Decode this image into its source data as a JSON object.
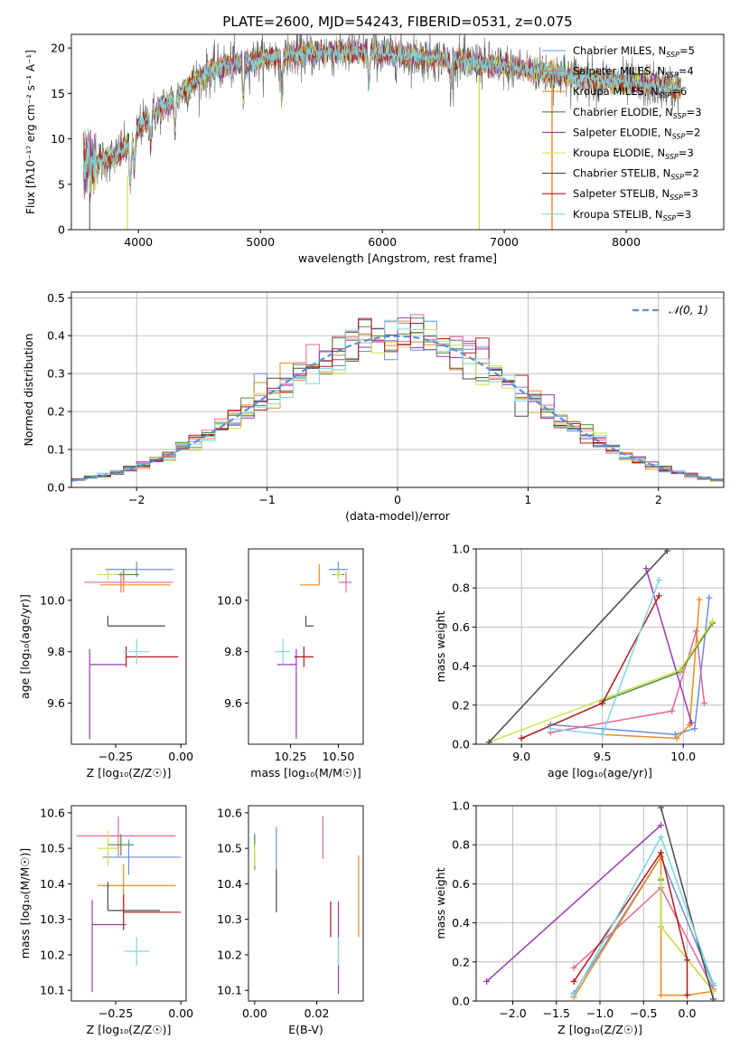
{
  "title": "PLATE=2600, MJD=54243, FIBERID=0531, z=0.075",
  "colors": {
    "Chabrier MILES": "#6b8fd9",
    "Salpeter MILES": "#e8669a",
    "Kroupa MILES": "#f08a1e",
    "Chabrier ELODIE": "#4f8a3a",
    "Salpeter ELODIE": "#9a3ab5",
    "Kroupa ELODIE": "#cfe24a",
    "Chabrier STELIB": "#4a4a4a",
    "Salpeter STELIB": "#b01a1a",
    "Kroupa STELIB": "#7ed7e0",
    "normal": "#5b8ed6"
  },
  "chart_data": [
    {
      "type": "line",
      "xlabel": "wavelength [Angstrom, rest frame]",
      "ylabel": "Flux [fλ10⁻¹⁷ erg cm⁻² s⁻¹ A⁻¹]",
      "xlim": [
        3450,
        8800
      ],
      "ylim": [
        0,
        21.5
      ],
      "xticks": [
        4000,
        5000,
        6000,
        7000,
        8000
      ],
      "yticks": [
        0,
        5,
        10,
        15,
        20
      ],
      "legend_position": "top-right",
      "series": [
        {
          "name": "Chabrier MILES",
          "nssp": 5
        },
        {
          "name": "Salpeter MILES",
          "nssp": 4
        },
        {
          "name": "Kroupa MILES",
          "nssp": 6
        },
        {
          "name": "Chabrier ELODIE",
          "nssp": 3
        },
        {
          "name": "Salpeter ELODIE",
          "nssp": 2
        },
        {
          "name": "Kroupa ELODIE",
          "nssp": 3
        },
        {
          "name": "Chabrier STELIB",
          "nssp": 2
        },
        {
          "name": "Salpeter STELIB",
          "nssp": 3
        },
        {
          "name": "Kroupa STELIB",
          "nssp": 3
        }
      ],
      "continuum_anchors": [
        [
          3550,
          7.2
        ],
        [
          3700,
          7.6
        ],
        [
          3800,
          8.0
        ],
        [
          3950,
          9.6
        ],
        [
          4000,
          11.2
        ],
        [
          4100,
          12.5
        ],
        [
          4200,
          13.5
        ],
        [
          4300,
          14.5
        ],
        [
          4500,
          16.8
        ],
        [
          4700,
          18.0
        ],
        [
          4900,
          18.5
        ],
        [
          5100,
          19.0
        ],
        [
          5300,
          19.3
        ],
        [
          5500,
          19.5
        ],
        [
          5700,
          19.5
        ],
        [
          5900,
          19.6
        ],
        [
          6100,
          19.3
        ],
        [
          6300,
          19.0
        ],
        [
          6500,
          18.8
        ],
        [
          6700,
          18.4
        ],
        [
          6900,
          18.1
        ],
        [
          7100,
          17.8
        ],
        [
          7300,
          17.4
        ],
        [
          7500,
          17.0
        ],
        [
          7700,
          16.6
        ],
        [
          7900,
          16.3
        ],
        [
          8100,
          16.0
        ],
        [
          8300,
          15.7
        ],
        [
          8450,
          15.5
        ]
      ],
      "dips": [
        [
          3933,
          4.5
        ],
        [
          3968,
          3.5
        ],
        [
          4101,
          3.0
        ],
        [
          4300,
          3.5
        ],
        [
          4861,
          4.0
        ],
        [
          5175,
          4.5
        ],
        [
          5890,
          3.5
        ],
        [
          6563,
          2.5
        ]
      ]
    },
    {
      "type": "histogram",
      "xlabel": "(data-model)/error",
      "ylabel": "Normed distribution",
      "xlim": [
        -2.5,
        2.5
      ],
      "ylim": [
        0,
        0.515
      ],
      "xticks": [
        -2,
        -1,
        0,
        1,
        2
      ],
      "yticks": [
        0.0,
        0.1,
        0.2,
        0.3,
        0.4,
        0.5
      ],
      "grid": true,
      "legend_position": "top-right",
      "reference_curve": "𝒩(0, 1)",
      "bin_width": 0.1
    },
    {
      "type": "errorbar",
      "xlabel": "Z [log₁₀(Z/Z☉)]",
      "ylabel": "age  [log₁₀(age/yr)]",
      "xlim": [
        -0.42,
        0.02
      ],
      "ylim": [
        9.44,
        10.2
      ],
      "xticks": [
        -0.25,
        0.0
      ],
      "yticks": [
        9.6,
        9.8,
        10.0
      ],
      "points": [
        {
          "model": "Chabrier MILES",
          "x": -0.17,
          "y": 10.12,
          "xerr": [
            0.12,
            0.14
          ],
          "yerr": [
            0.03,
            0.03
          ]
        },
        {
          "model": "Salpeter MILES",
          "x": -0.23,
          "y": 10.07,
          "xerr": [
            0.14,
            0.2
          ],
          "yerr": [
            0.04,
            0.04
          ]
        },
        {
          "model": "Kroupa MILES",
          "x": -0.22,
          "y": 10.06,
          "xerr": [
            0.09,
            0.18
          ],
          "yerr": [
            0.03,
            0.03
          ]
        },
        {
          "model": "Chabrier ELODIE",
          "x": -0.22,
          "y": 10.1,
          "xerr": [
            0.06,
            0.06
          ],
          "yerr": [
            0.02,
            0.02
          ]
        },
        {
          "model": "Salpeter ELODIE",
          "x": -0.35,
          "y": 9.75,
          "xerr": [
            0.0,
            0.14
          ],
          "yerr": [
            0.29,
            0.06
          ]
        },
        {
          "model": "Kroupa ELODIE",
          "x": -0.28,
          "y": 10.1,
          "xerr": [
            0.04,
            0.04
          ],
          "yerr": [
            0.02,
            0.02
          ]
        },
        {
          "model": "Chabrier STELIB",
          "x": -0.28,
          "y": 9.9,
          "xerr": [
            0.0,
            0.22
          ],
          "yerr": [
            0.0,
            0.04
          ]
        },
        {
          "model": "Salpeter STELIB",
          "x": -0.21,
          "y": 9.78,
          "xerr": [
            0.0,
            0.2
          ],
          "yerr": [
            0.04,
            0.04
          ]
        },
        {
          "model": "Kroupa STELIB",
          "x": -0.17,
          "y": 9.8,
          "xerr": [
            0.05,
            0.05
          ],
          "yerr": [
            0.05,
            0.05
          ]
        }
      ]
    },
    {
      "type": "errorbar",
      "xlabel": "mass [log₁₀(M/M☉)]",
      "xlim": [
        10.03,
        10.63
      ],
      "ylim": [
        9.44,
        10.2
      ],
      "xticks": [
        10.25,
        10.5
      ],
      "yticks": [
        9.6,
        9.8,
        10.0
      ],
      "points": [
        {
          "model": "Chabrier MILES",
          "x": 10.5,
          "y": 10.12,
          "xerr": [
            0.05,
            0.05
          ],
          "yerr": [
            0.03,
            0.03
          ]
        },
        {
          "model": "Salpeter MILES",
          "x": 10.54,
          "y": 10.07,
          "xerr": [
            0.04,
            0.03
          ],
          "yerr": [
            0.04,
            0.04
          ]
        },
        {
          "model": "Kroupa MILES",
          "x": 10.4,
          "y": 10.06,
          "xerr": [
            0.1,
            0.0
          ],
          "yerr": [
            0.0,
            0.08
          ]
        },
        {
          "model": "Chabrier ELODIE",
          "x": 10.5,
          "y": 10.1,
          "xerr": [
            0.03,
            0.03
          ],
          "yerr": [
            0.02,
            0.02
          ]
        },
        {
          "model": "Salpeter ELODIE",
          "x": 10.28,
          "y": 9.75,
          "xerr": [
            0.1,
            0.0
          ],
          "yerr": [
            0.29,
            0.06
          ]
        },
        {
          "model": "Kroupa ELODIE",
          "x": 10.5,
          "y": 10.1,
          "xerr": [
            0.02,
            0.02
          ],
          "yerr": [
            0.02,
            0.02
          ]
        },
        {
          "model": "Chabrier STELIB",
          "x": 10.33,
          "y": 9.9,
          "xerr": [
            0.0,
            0.04
          ],
          "yerr": [
            0.0,
            0.04
          ]
        },
        {
          "model": "Salpeter STELIB",
          "x": 10.32,
          "y": 9.78,
          "xerr": [
            0.05,
            0.05
          ],
          "yerr": [
            0.04,
            0.04
          ]
        },
        {
          "model": "Kroupa STELIB",
          "x": 10.21,
          "y": 9.8,
          "xerr": [
            0.04,
            0.04
          ],
          "yerr": [
            0.05,
            0.05
          ]
        }
      ]
    },
    {
      "type": "line",
      "xlabel": "age  [log₁₀(age/yr)]",
      "ylabel": "mass weight",
      "xlim": [
        8.72,
        10.25
      ],
      "ylim": [
        0,
        1.0
      ],
      "xticks": [
        9.0,
        9.5,
        10.0
      ],
      "yticks": [
        0.0,
        0.2,
        0.4,
        0.6,
        0.8,
        1.0
      ],
      "grid": true,
      "series": [
        {
          "name": "Chabrier MILES",
          "x": [
            9.18,
            9.95,
            10.07,
            10.16
          ],
          "y": [
            0.1,
            0.05,
            0.08,
            0.75
          ]
        },
        {
          "name": "Salpeter MILES",
          "x": [
            9.18,
            9.93,
            10.08,
            10.13
          ],
          "y": [
            0.06,
            0.17,
            0.58,
            0.21
          ]
        },
        {
          "name": "Kroupa MILES",
          "x": [
            9.5,
            9.96,
            10.04,
            10.1
          ],
          "y": [
            0.05,
            0.03,
            0.1,
            0.74
          ]
        },
        {
          "name": "Chabrier ELODIE",
          "x": [
            9.5,
            9.98,
            10.18
          ],
          "y": [
            0.22,
            0.37,
            0.62
          ]
        },
        {
          "name": "Salpeter ELODIE",
          "x": [
            9.77,
            10.05
          ],
          "y": [
            0.9,
            0.11
          ]
        },
        {
          "name": "Kroupa ELODIE",
          "x": [
            8.8,
            9.98,
            10.18
          ],
          "y": [
            0.01,
            0.38,
            0.63
          ]
        },
        {
          "name": "Chabrier STELIB",
          "x": [
            8.8,
            9.9
          ],
          "y": [
            0.01,
            0.99
          ]
        },
        {
          "name": "Salpeter STELIB",
          "x": [
            9.0,
            9.5,
            9.85
          ],
          "y": [
            0.03,
            0.21,
            0.76
          ]
        },
        {
          "name": "Kroupa STELIB",
          "x": [
            9.18,
            9.5,
            9.85
          ],
          "y": [
            0.08,
            0.05,
            0.84
          ]
        }
      ]
    },
    {
      "type": "errorbar",
      "xlabel": "Z [log₁₀(Z/Z☉)]",
      "ylabel": "mass [log₁₀(M/M☉)]",
      "xlim": [
        -0.42,
        0.02
      ],
      "ylim": [
        10.07,
        10.62
      ],
      "xticks": [
        -0.25,
        0.0
      ],
      "yticks": [
        10.1,
        10.2,
        10.3,
        10.4,
        10.5,
        10.6
      ],
      "points": [
        {
          "model": "Chabrier MILES",
          "x": -0.2,
          "y": 10.475,
          "xerr": [
            0.1,
            0.2
          ],
          "yerr": [
            0.05,
            0.05
          ]
        },
        {
          "model": "Salpeter MILES",
          "x": -0.24,
          "y": 10.535,
          "xerr": [
            0.16,
            0.22
          ],
          "yerr": [
            0.06,
            0.055
          ]
        },
        {
          "model": "Kroupa MILES",
          "x": -0.22,
          "y": 10.395,
          "xerr": [
            0.1,
            0.2
          ],
          "yerr": [
            0.06,
            0.06
          ]
        },
        {
          "model": "Chabrier ELODIE",
          "x": -0.23,
          "y": 10.51,
          "xerr": [
            0.05,
            0.05
          ],
          "yerr": [
            0.03,
            0.03
          ]
        },
        {
          "model": "Salpeter ELODIE",
          "x": -0.34,
          "y": 10.285,
          "xerr": [
            0.0,
            0.13
          ],
          "yerr": [
            0.19,
            0.07
          ]
        },
        {
          "model": "Kroupa ELODIE",
          "x": -0.28,
          "y": 10.5,
          "xerr": [
            0.04,
            0.04
          ],
          "yerr": [
            0.05,
            0.05
          ]
        },
        {
          "model": "Chabrier STELIB",
          "x": -0.28,
          "y": 10.325,
          "xerr": [
            0.0,
            0.2
          ],
          "yerr": [
            0.0,
            0.08
          ]
        },
        {
          "model": "Salpeter STELIB",
          "x": -0.22,
          "y": 10.32,
          "xerr": [
            0.0,
            0.22
          ],
          "yerr": [
            0.05,
            0.05
          ]
        },
        {
          "model": "Kroupa STELIB",
          "x": -0.17,
          "y": 10.21,
          "xerr": [
            0.05,
            0.05
          ],
          "yerr": [
            0.04,
            0.04
          ]
        }
      ]
    },
    {
      "type": "errorbar",
      "xlabel": "E(B-V)",
      "xlim": [
        -0.002,
        0.035
      ],
      "ylim": [
        10.07,
        10.62
      ],
      "xticks": [
        0.0,
        0.02
      ],
      "yticks": [
        10.1,
        10.2,
        10.3,
        10.4,
        10.5,
        10.6
      ],
      "points": [
        {
          "model": "Chabrier MILES",
          "x": 0.007,
          "y": 10.5,
          "yerr": [
            0.06,
            0.06
          ]
        },
        {
          "model": "Salpeter MILES",
          "x": 0.022,
          "y": 10.53,
          "yerr": [
            0.06,
            0.06
          ]
        },
        {
          "model": "Kroupa MILES",
          "x": 0.0335,
          "y": 10.36,
          "yerr": [
            0.11,
            0.12
          ]
        },
        {
          "model": "Chabrier ELODIE",
          "x": 0.0,
          "y": 10.49,
          "yerr": [
            0.05,
            0.05
          ]
        },
        {
          "model": "Salpeter ELODIE",
          "x": 0.027,
          "y": 10.22,
          "yerr": [
            0.13,
            0.13
          ]
        },
        {
          "model": "Kroupa ELODIE",
          "x": 0.0,
          "y": 10.48,
          "yerr": [
            0.03,
            0.03
          ]
        },
        {
          "model": "Chabrier STELIB",
          "x": 0.007,
          "y": 10.38,
          "yerr": [
            0.06,
            0.06
          ]
        },
        {
          "model": "Salpeter STELIB",
          "x": 0.0245,
          "y": 10.3,
          "yerr": [
            0.05,
            0.05
          ]
        },
        {
          "model": "Kroupa STELIB",
          "x": 0.027,
          "y": 10.21,
          "yerr": [
            0.04,
            0.04
          ]
        }
      ]
    },
    {
      "type": "line",
      "xlabel": "Z [log₁₀(Z/Z☉)]",
      "ylabel": "mass weight",
      "xlim": [
        -2.42,
        0.42
      ],
      "ylim": [
        0,
        1.0
      ],
      "xticks": [
        -2.0,
        -1.5,
        -1.0,
        -0.5,
        0.0
      ],
      "yticks": [
        0.0,
        0.2,
        0.4,
        0.6,
        0.8,
        1.0
      ],
      "grid": true,
      "series": [
        {
          "name": "Chabrier MILES",
          "x": [
            -1.3,
            -0.3,
            0.3
          ],
          "y": [
            0.04,
            0.74,
            0.08
          ]
        },
        {
          "name": "Salpeter MILES",
          "x": [
            -1.3,
            -0.3,
            0.3
          ],
          "y": [
            0.17,
            0.58,
            0.06
          ]
        },
        {
          "name": "Kroupa MILES",
          "x": [
            -1.3,
            -0.3,
            -0.3,
            0.0,
            0.3
          ],
          "y": [
            0.02,
            0.74,
            0.03,
            0.03,
            0.05
          ]
        },
        {
          "name": "Chabrier ELODIE",
          "x": [
            -0.3,
            -0.3,
            0.3
          ],
          "y": [
            0.62,
            0.38,
            0.05
          ]
        },
        {
          "name": "Salpeter ELODIE",
          "x": [
            -2.3,
            -0.3
          ],
          "y": [
            0.1,
            0.9
          ]
        },
        {
          "name": "Kroupa ELODIE",
          "x": [
            -0.3,
            -0.3,
            0.3
          ],
          "y": [
            0.63,
            0.38,
            0.05
          ]
        },
        {
          "name": "Chabrier STELIB",
          "x": [
            -0.3,
            0.3
          ],
          "y": [
            0.99,
            0.01
          ]
        },
        {
          "name": "Salpeter STELIB",
          "x": [
            -1.3,
            -0.3,
            0.0,
            0.0
          ],
          "y": [
            0.1,
            0.76,
            0.21,
            0.03
          ]
        },
        {
          "name": "Kroupa STELIB",
          "x": [
            -1.3,
            -0.3,
            0.3
          ],
          "y": [
            0.03,
            0.84,
            0.09
          ]
        }
      ]
    }
  ]
}
